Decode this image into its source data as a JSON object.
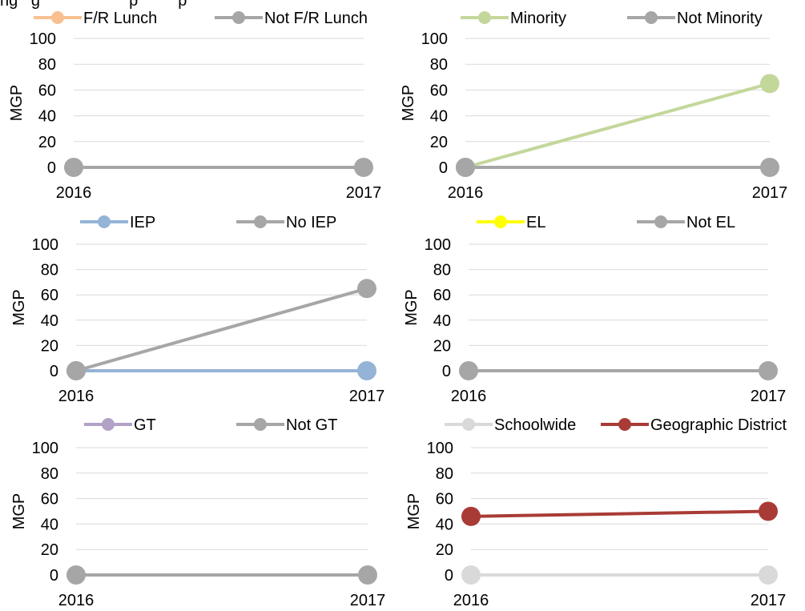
{
  "header_fragment": "ng   g                    p         p",
  "chart_data": [
    {
      "type": "line",
      "ylabel": "MGP",
      "x": [
        "2016",
        "2017"
      ],
      "ylim": [
        0,
        100
      ],
      "yticks": [
        0,
        20,
        40,
        60,
        80,
        100
      ],
      "grid": true,
      "legend": "top",
      "series": [
        {
          "name": "F/R Lunch",
          "color": "#f8c090",
          "values": [
            null,
            null
          ]
        },
        {
          "name": "Not F/R Lunch",
          "color": "#a6a6a6",
          "values": [
            0,
            0
          ]
        }
      ]
    },
    {
      "type": "line",
      "ylabel": "MGP",
      "x": [
        "2016",
        "2017"
      ],
      "ylim": [
        0,
        100
      ],
      "yticks": [
        0,
        20,
        40,
        60,
        80,
        100
      ],
      "grid": true,
      "legend": "top",
      "series": [
        {
          "name": "Minority",
          "color": "#c4d79b",
          "values": [
            0,
            65
          ]
        },
        {
          "name": "Not Minority",
          "color": "#a6a6a6",
          "values": [
            0,
            0
          ]
        }
      ]
    },
    {
      "type": "line",
      "ylabel": "MGP",
      "x": [
        "2016",
        "2017"
      ],
      "ylim": [
        0,
        100
      ],
      "yticks": [
        0,
        20,
        40,
        60,
        80,
        100
      ],
      "grid": true,
      "legend": "top",
      "series": [
        {
          "name": "IEP",
          "color": "#95b3d7",
          "values": [
            0,
            0
          ]
        },
        {
          "name": "No IEP",
          "color": "#a6a6a6",
          "values": [
            0,
            65
          ]
        }
      ]
    },
    {
      "type": "line",
      "ylabel": "MGP",
      "x": [
        "2016",
        "2017"
      ],
      "ylim": [
        0,
        100
      ],
      "yticks": [
        0,
        20,
        40,
        60,
        80,
        100
      ],
      "grid": true,
      "legend": "top",
      "series": [
        {
          "name": "EL",
          "color": "#ffff00",
          "values": [
            null,
            null
          ]
        },
        {
          "name": "Not EL",
          "color": "#a6a6a6",
          "values": [
            0,
            0
          ]
        }
      ]
    },
    {
      "type": "line",
      "ylabel": "MGP",
      "x": [
        "2016",
        "2017"
      ],
      "ylim": [
        0,
        100
      ],
      "yticks": [
        0,
        20,
        40,
        60,
        80,
        100
      ],
      "grid": true,
      "legend": "top",
      "series": [
        {
          "name": "GT",
          "color": "#b3a2c7",
          "values": [
            null,
            null
          ]
        },
        {
          "name": "Not GT",
          "color": "#a6a6a6",
          "values": [
            0,
            0
          ]
        }
      ]
    },
    {
      "type": "line",
      "ylabel": "MGP",
      "x": [
        "2016",
        "2017"
      ],
      "ylim": [
        0,
        100
      ],
      "yticks": [
        0,
        20,
        40,
        60,
        80,
        100
      ],
      "grid": true,
      "legend": "top",
      "series": [
        {
          "name": "Schoolwide",
          "color": "#d9d9d9",
          "values": [
            0,
            0
          ]
        },
        {
          "name": "Geographic District",
          "color": "#a93b36",
          "values": [
            46,
            50
          ]
        }
      ]
    }
  ]
}
